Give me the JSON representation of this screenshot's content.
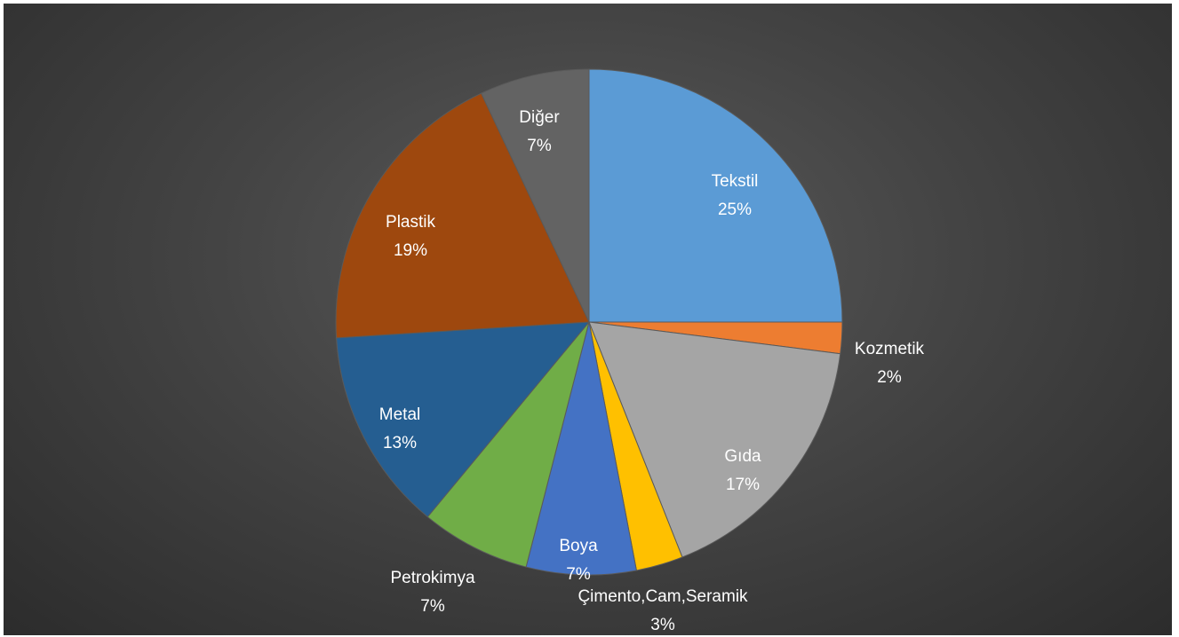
{
  "chart_data": {
    "type": "pie",
    "title": "",
    "start_angle_deg": 0,
    "direction": "clockwise",
    "slices": [
      {
        "label": "Tekstil",
        "value": 25,
        "value_label": "25%",
        "color": "#5b9bd5"
      },
      {
        "label": "Kozmetik",
        "value": 2,
        "value_label": "2%",
        "color": "#ed7d31"
      },
      {
        "label": "Gıda",
        "value": 17,
        "value_label": "17%",
        "color": "#a5a5a5"
      },
      {
        "label": "Çimento,Cam,Seramik",
        "value": 3,
        "value_label": "3%",
        "color": "#ffc000"
      },
      {
        "label": "Boya",
        "value": 7,
        "value_label": "7%",
        "color": "#4472c4"
      },
      {
        "label": "Petrokimya",
        "value": 7,
        "value_label": "7%",
        "color": "#70ad47"
      },
      {
        "label": "Metal",
        "value": 13,
        "value_label": "13%",
        "color": "#255e91"
      },
      {
        "label": "Plastik",
        "value": 19,
        "value_label": "19%",
        "color": "#9e480e"
      },
      {
        "label": "Diğer",
        "value": 7,
        "value_label": "7%",
        "color": "#636363"
      }
    ]
  }
}
